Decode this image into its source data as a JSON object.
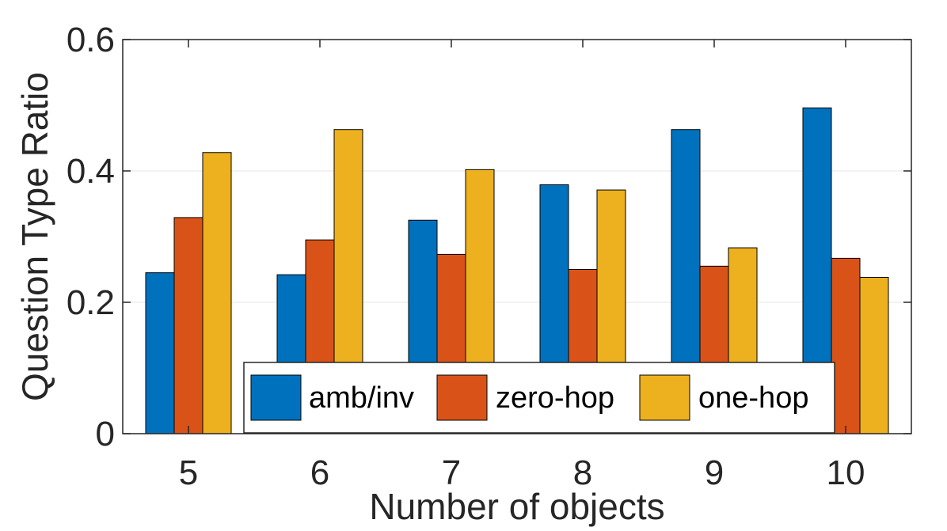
{
  "chart_data": {
    "type": "bar",
    "xlabel": "Number of objects",
    "ylabel": "Question Type Ratio",
    "categories": [
      "5",
      "6",
      "7",
      "8",
      "9",
      "10"
    ],
    "ylim": [
      0,
      0.6
    ],
    "yticks": [
      0,
      0.2,
      0.4,
      0.6
    ],
    "ytick_labels": [
      "0",
      "0.2",
      "0.4",
      "0.6"
    ],
    "grid": true,
    "legend_position": "bottom-center",
    "series": [
      {
        "name": "amb/inv",
        "color": "#0072BD",
        "values": [
          0.245,
          0.242,
          0.325,
          0.379,
          0.463,
          0.496
        ]
      },
      {
        "name": "zero-hop",
        "color": "#D95319",
        "values": [
          0.329,
          0.295,
          0.273,
          0.25,
          0.255,
          0.267
        ]
      },
      {
        "name": "one-hop",
        "color": "#EDB120",
        "values": [
          0.428,
          0.463,
          0.402,
          0.371,
          0.283,
          0.238
        ]
      }
    ]
  }
}
